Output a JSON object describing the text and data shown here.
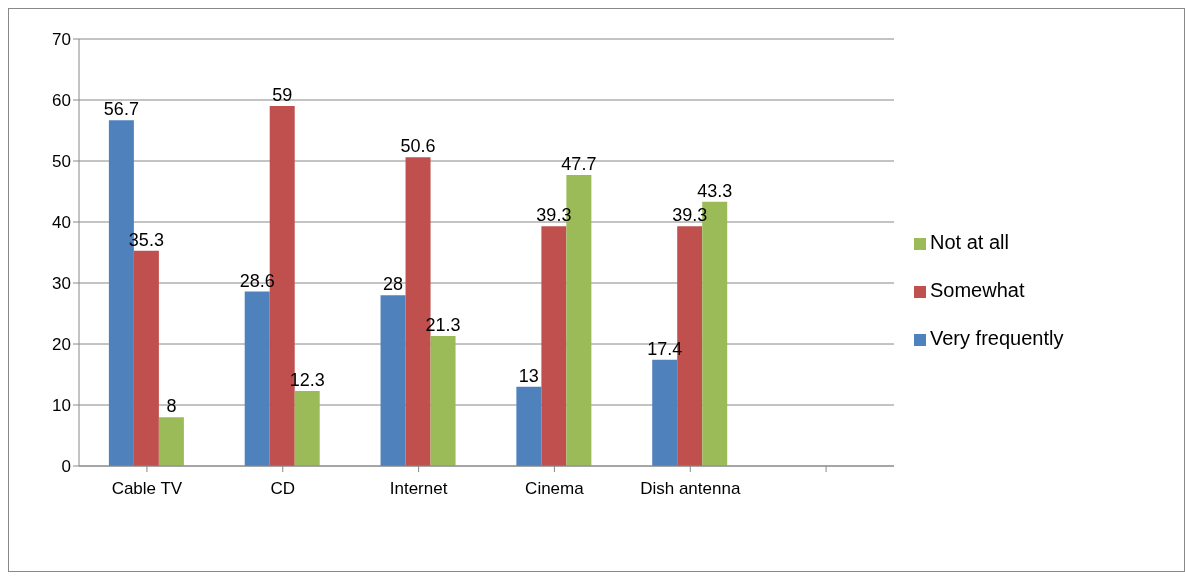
{
  "chart_data": {
    "type": "bar",
    "categories": [
      "Cable TV",
      "CD",
      "Internet",
      "Cinema",
      "Dish antenna",
      null
    ],
    "series": [
      {
        "name": "Very frequently",
        "color": "#4f81bd",
        "values": [
          56.7,
          28.6,
          28,
          13,
          17.4,
          null
        ]
      },
      {
        "name": "Somewhat",
        "color": "#c0504d",
        "values": [
          35.3,
          59,
          50.6,
          39.3,
          39.3,
          null
        ]
      },
      {
        "name": "Not at all",
        "color": "#9bbb59",
        "values": [
          8,
          12.3,
          21.3,
          47.7,
          43.3,
          null
        ]
      }
    ],
    "ylim": [
      0,
      70
    ],
    "yticks": [
      0,
      10,
      20,
      30,
      40,
      50,
      60,
      70
    ],
    "grid": "y",
    "legend": "right",
    "data_labels": true
  }
}
